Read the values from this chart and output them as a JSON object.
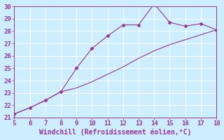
{
  "xlabel": "Windchill (Refroidissement éolien,°C)",
  "line1_x": [
    5,
    6,
    7,
    8,
    9,
    10,
    11,
    12,
    13,
    14,
    15,
    16,
    17,
    18
  ],
  "line1_y": [
    21.3,
    21.8,
    22.4,
    23.1,
    25.0,
    26.6,
    27.6,
    28.5,
    28.5,
    30.2,
    28.7,
    28.4,
    28.6,
    28.1
  ],
  "line2_x": [
    5,
    6,
    7,
    8,
    9,
    10,
    11,
    12,
    13,
    14,
    15,
    16,
    17,
    18
  ],
  "line2_y": [
    21.3,
    21.8,
    22.4,
    23.1,
    23.4,
    23.9,
    24.5,
    25.1,
    25.8,
    26.4,
    26.9,
    27.3,
    27.7,
    28.1
  ],
  "line_color": "#993399",
  "bg_color": "#cceeff",
  "grid_color": "#aaddcc",
  "xlim": [
    5,
    18
  ],
  "ylim": [
    21,
    30
  ],
  "xticks": [
    5,
    6,
    7,
    8,
    9,
    10,
    11,
    12,
    13,
    14,
    15,
    16,
    17,
    18
  ],
  "yticks": [
    21,
    22,
    23,
    24,
    25,
    26,
    27,
    28,
    29,
    30
  ],
  "tick_fontsize": 6.5,
  "xlabel_fontsize": 7,
  "marker": "D",
  "marker_size": 2.5,
  "linewidth": 0.8
}
